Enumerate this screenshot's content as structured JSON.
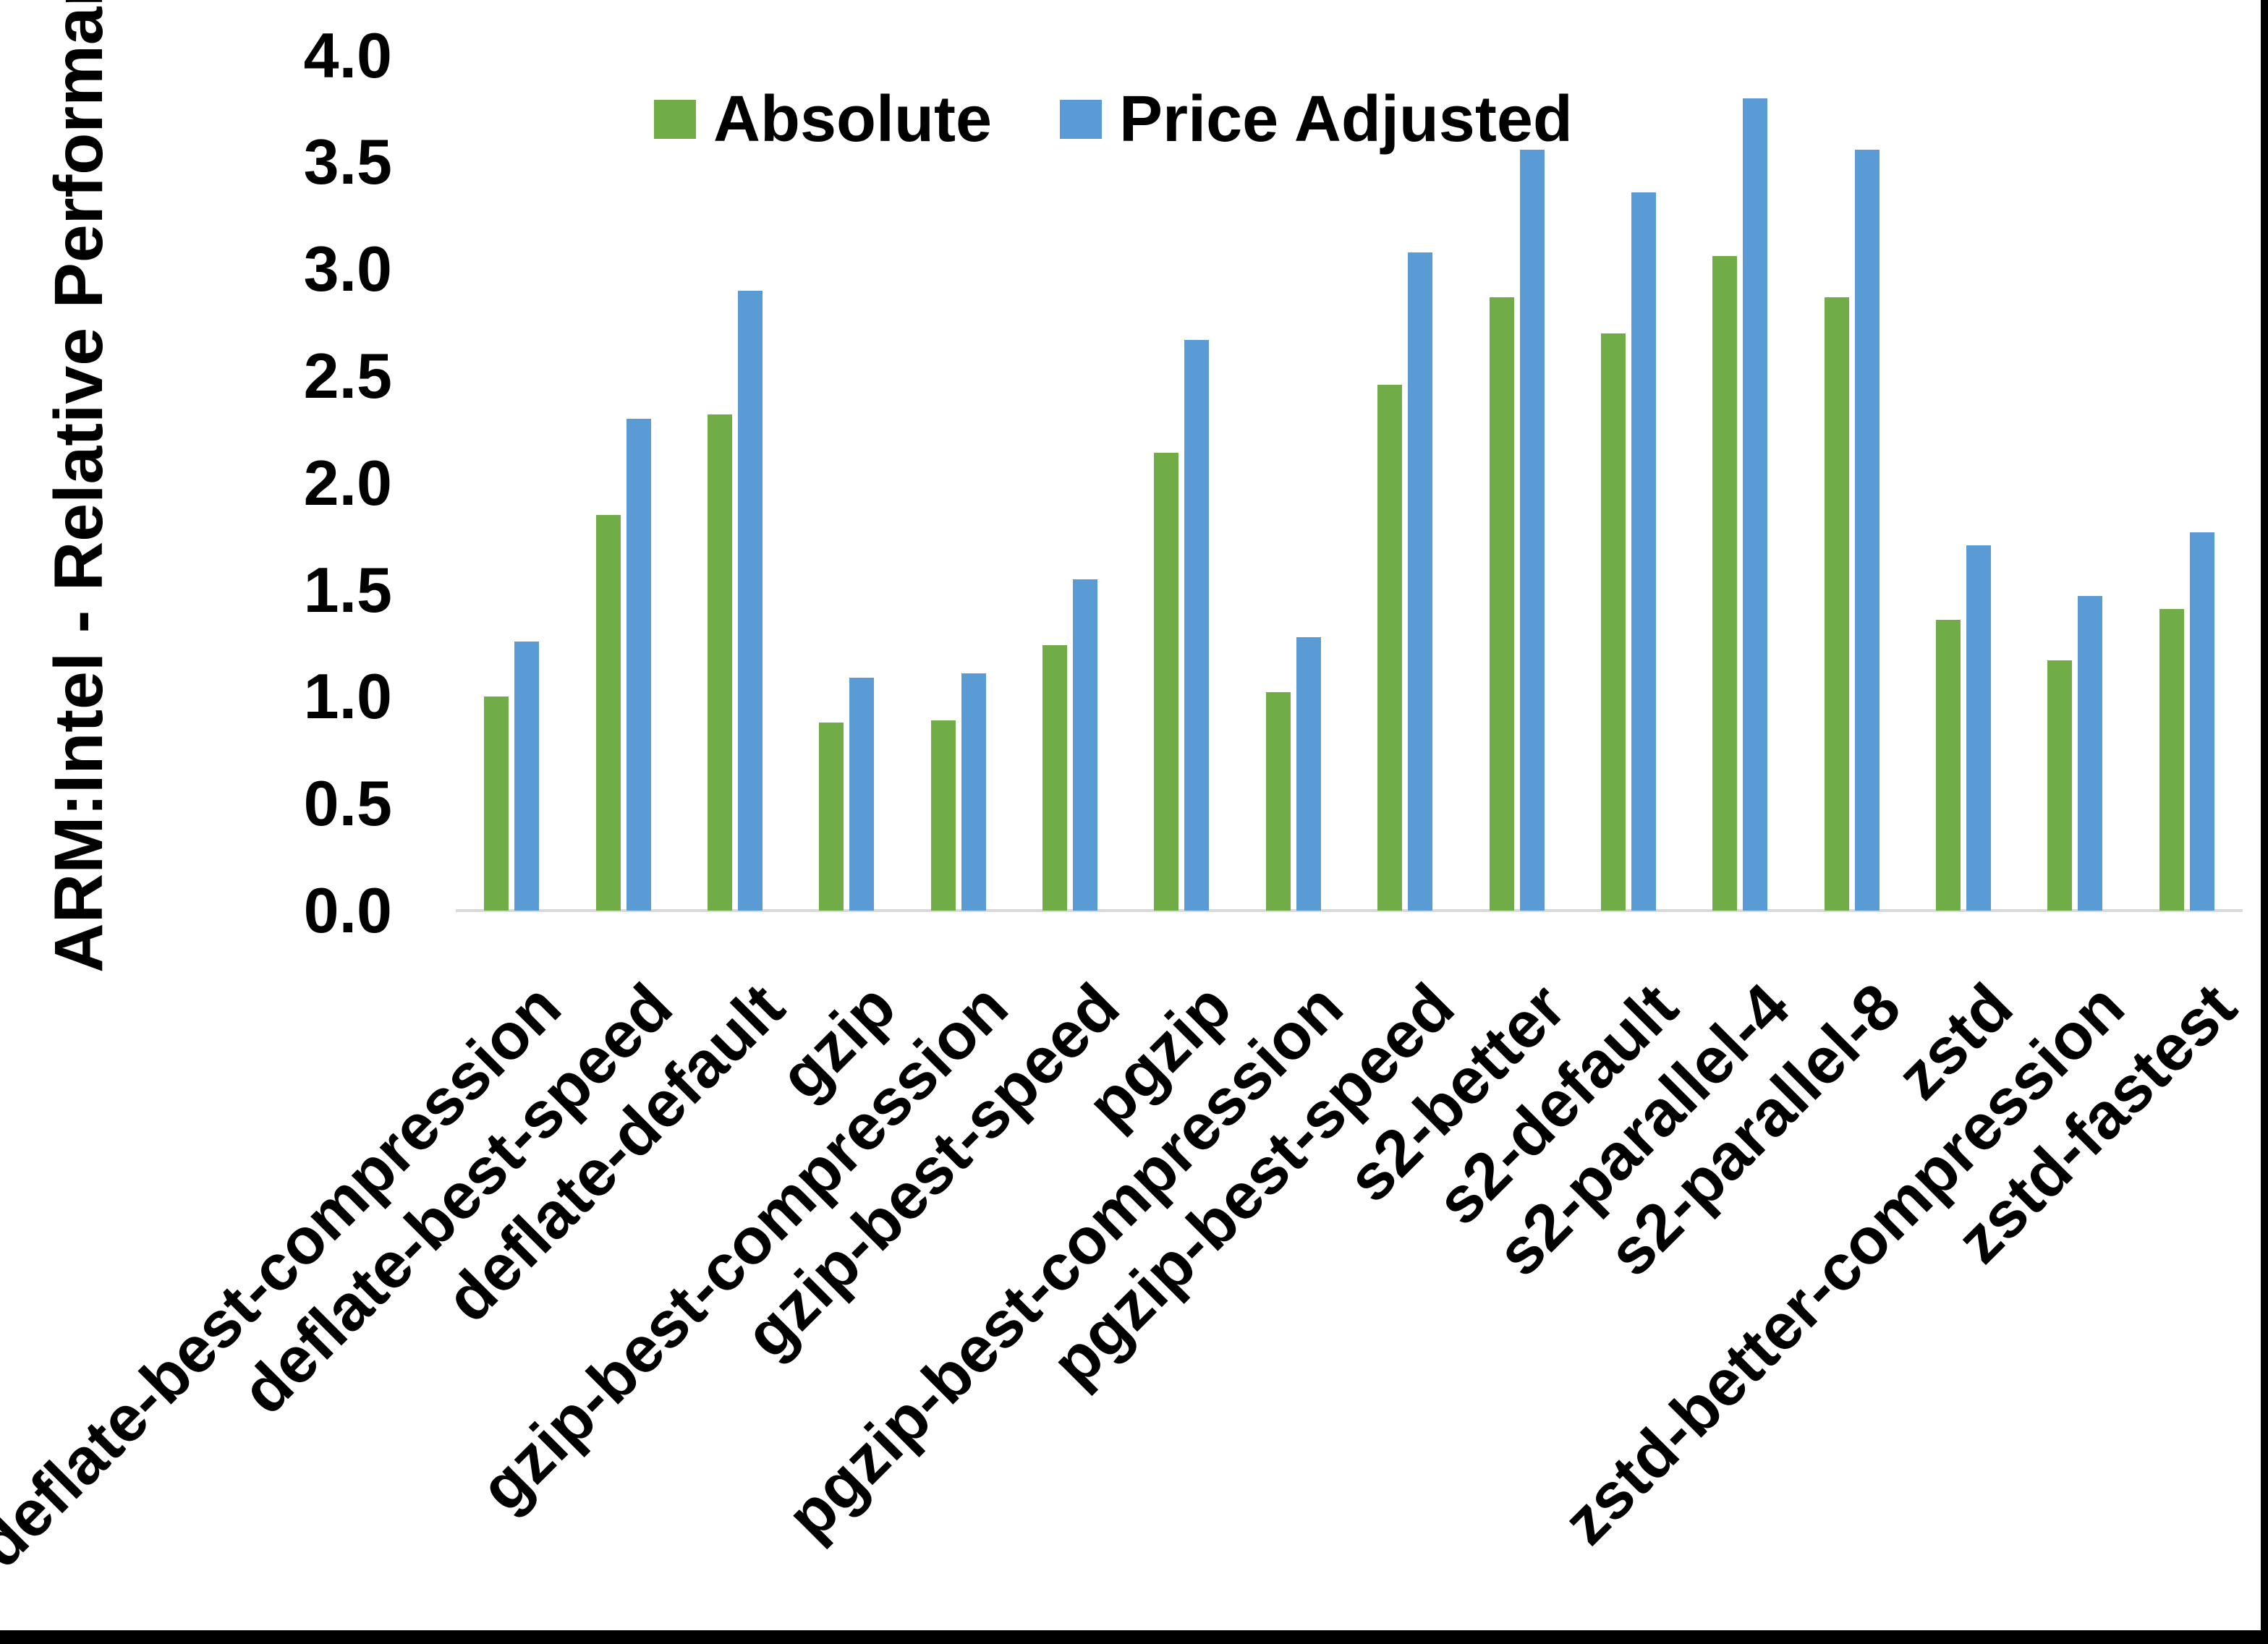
{
  "chart_data": {
    "type": "bar",
    "title": "",
    "ylabel": "ARM:Intel - Relative Performance",
    "xlabel": "",
    "ylim": [
      0.0,
      4.0
    ],
    "ytick_step": 0.5,
    "ytick_labels": [
      "0.0",
      "0.5",
      "1.0",
      "1.5",
      "2.0",
      "2.5",
      "3.0",
      "3.5",
      "4.0"
    ],
    "grid": false,
    "legend_position": "top-center",
    "categories": [
      "deflate-best-compression",
      "deflate-best-speed",
      "deflate-default",
      "gzip",
      "gzip-best-compression",
      "gzip-best-speed",
      "pgzip",
      "pgzip-best-compression",
      "pgzip-best-speed",
      "s2-better",
      "s2-default",
      "s2-parallel-4",
      "s2-parallel-8",
      "zstd",
      "zstd-better-compression",
      "zstd-fastest"
    ],
    "series": [
      {
        "name": "Absolute",
        "color": "#70AD47",
        "values": [
          1.0,
          1.85,
          2.32,
          0.88,
          0.89,
          1.24,
          2.14,
          1.02,
          2.46,
          2.87,
          2.7,
          3.06,
          2.87,
          1.36,
          1.17,
          1.41
        ]
      },
      {
        "name": "Price Adjusted",
        "color": "#5B9BD5",
        "values": [
          1.26,
          2.3,
          2.9,
          1.09,
          1.11,
          1.55,
          2.67,
          1.28,
          3.08,
          3.56,
          3.36,
          3.8,
          3.56,
          1.71,
          1.47,
          1.77
        ]
      }
    ],
    "axis_line_color": "#D9D9D9",
    "text_color": "#000000"
  }
}
